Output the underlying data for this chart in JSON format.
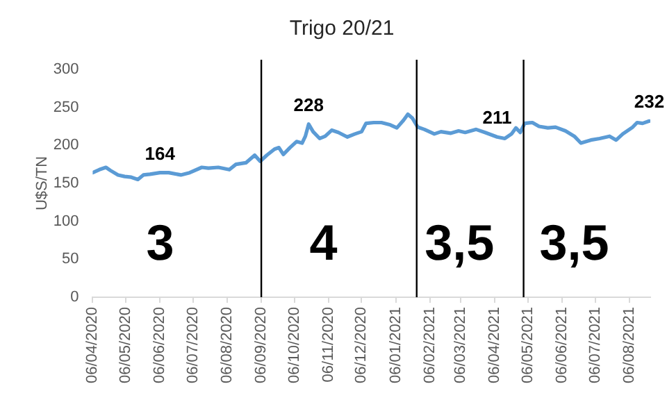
{
  "chart_data": {
    "type": "line",
    "title": "Trigo 20/21",
    "ylabel": "U$S/TN",
    "x": [
      "2020-04-06",
      "2020-04-12",
      "2020-04-18",
      "2020-04-22",
      "2020-04-29",
      "2020-05-05",
      "2020-05-11",
      "2020-05-17",
      "2020-05-22",
      "2020-05-28",
      "2020-06-06",
      "2020-06-14",
      "2020-06-25",
      "2020-07-03",
      "2020-07-14",
      "2020-07-20",
      "2020-07-29",
      "2020-08-08",
      "2020-08-14",
      "2020-08-23",
      "2020-08-31",
      "2020-09-05",
      "2020-09-11",
      "2020-09-18",
      "2020-09-22",
      "2020-09-26",
      "2020-10-02",
      "2020-10-08",
      "2020-10-13",
      "2020-10-16",
      "2020-10-19",
      "2020-10-23",
      "2020-10-29",
      "2020-11-03",
      "2020-11-09",
      "2020-11-15",
      "2020-11-23",
      "2020-11-30",
      "2020-12-06",
      "2020-12-10",
      "2020-12-17",
      "2020-12-24",
      "2021-01-01",
      "2021-01-07",
      "2021-01-13",
      "2021-01-17",
      "2021-01-21",
      "2021-01-26",
      "2021-02-01",
      "2021-02-10",
      "2021-02-16",
      "2021-02-25",
      "2021-03-04",
      "2021-03-10",
      "2021-03-20",
      "2021-03-28",
      "2021-04-08",
      "2021-04-15",
      "2021-04-21",
      "2021-04-25",
      "2021-04-29",
      "2021-05-03",
      "2021-05-10",
      "2021-05-16",
      "2021-05-24",
      "2021-05-31",
      "2021-06-09",
      "2021-06-17",
      "2021-06-23",
      "2021-07-02",
      "2021-07-10",
      "2021-07-19",
      "2021-07-25",
      "2021-07-31",
      "2021-08-09",
      "2021-08-13",
      "2021-08-18",
      "2021-08-24"
    ],
    "series": [
      {
        "color": "#5b9bd5",
        "values": [
          164,
          168,
          171,
          167,
          161,
          159,
          158,
          155,
          161,
          162,
          164,
          164,
          161,
          164,
          171,
          170,
          171,
          168,
          175,
          177,
          187,
          179,
          187,
          195,
          197,
          188,
          197,
          205,
          203,
          212,
          228,
          218,
          209,
          212,
          220,
          217,
          211,
          215,
          218,
          229,
          230,
          230,
          227,
          223,
          233,
          241,
          236,
          224,
          221,
          215,
          218,
          216,
          219,
          217,
          221,
          217,
          211,
          209,
          215,
          223,
          217,
          229,
          230,
          225,
          223,
          224,
          219,
          212,
          203,
          207,
          209,
          212,
          207,
          215,
          224,
          230,
          229,
          232
        ],
        "value_labels": [
          null,
          null,
          null,
          null,
          null,
          null,
          null,
          null,
          null,
          null,
          "164",
          null,
          null,
          null,
          null,
          null,
          null,
          null,
          null,
          null,
          null,
          null,
          null,
          null,
          null,
          null,
          null,
          null,
          null,
          null,
          "228",
          null,
          null,
          null,
          null,
          null,
          null,
          null,
          null,
          null,
          null,
          null,
          null,
          null,
          null,
          null,
          null,
          null,
          null,
          null,
          null,
          null,
          null,
          null,
          null,
          null,
          "211",
          null,
          null,
          null,
          null,
          null,
          null,
          null,
          null,
          null,
          null,
          null,
          null,
          null,
          null,
          null,
          null,
          null,
          null,
          null,
          null,
          "232"
        ]
      }
    ],
    "xlim": [
      "2020-04-06",
      "2021-08-25"
    ],
    "xticks": [
      {
        "value": "2020-04-06",
        "label": "06/04/2020"
      },
      {
        "value": "2020-05-06",
        "label": "06/05/2020"
      },
      {
        "value": "2020-06-06",
        "label": "06/06/2020"
      },
      {
        "value": "2020-07-06",
        "label": "06/07/2020"
      },
      {
        "value": "2020-08-06",
        "label": "06/08/2020"
      },
      {
        "value": "2020-09-06",
        "label": "06/09/2020"
      },
      {
        "value": "2020-10-06",
        "label": "06/10/2020"
      },
      {
        "value": "2020-11-06",
        "label": "06/11/2020"
      },
      {
        "value": "2020-12-06",
        "label": "06/12/2020"
      },
      {
        "value": "2021-01-06",
        "label": "06/01/2021"
      },
      {
        "value": "2021-02-06",
        "label": "06/02/2021"
      },
      {
        "value": "2021-03-06",
        "label": "06/03/2021"
      },
      {
        "value": "2021-04-06",
        "label": "06/04/2021"
      },
      {
        "value": "2021-05-06",
        "label": "06/05/2021"
      },
      {
        "value": "2021-06-06",
        "label": "06/06/2021"
      },
      {
        "value": "2021-07-06",
        "label": "06/07/2021"
      },
      {
        "value": "2021-08-06",
        "label": "06/08/2021"
      }
    ],
    "ylim": [
      0,
      300
    ],
    "yticks": [
      0,
      50,
      100,
      150,
      200,
      250,
      300
    ],
    "ref_lines": [
      {
        "axis": "x",
        "value": "2020-09-06",
        "color": "#000000"
      },
      {
        "axis": "x",
        "value": "2021-01-25",
        "color": "#000000"
      },
      {
        "axis": "x",
        "value": "2021-05-02",
        "color": "#000000"
      }
    ],
    "annotations": [
      "3",
      "4",
      "3,5",
      "3,5"
    ]
  }
}
